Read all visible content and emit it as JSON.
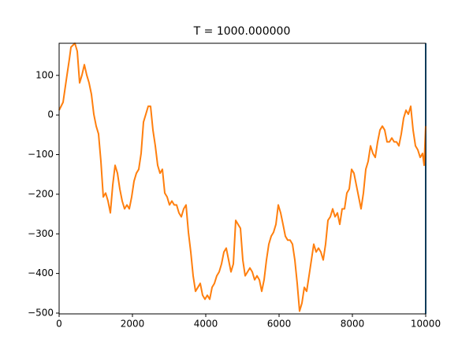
{
  "chart_data": {
    "type": "line",
    "title": "T = 1000.000000",
    "x": [
      0,
      108,
      215,
      280,
      323,
      387,
      430,
      495,
      560,
      624,
      688,
      753,
      817,
      882,
      946,
      1011,
      1075,
      1140,
      1204,
      1269,
      1333,
      1398,
      1462,
      1527,
      1591,
      1656,
      1720,
      1785,
      1849,
      1914,
      1978,
      2043,
      2108,
      2172,
      2237,
      2301,
      2366,
      2430,
      2495,
      2559,
      2624,
      2688,
      2753,
      2817,
      2882,
      2946,
      3011,
      3075,
      3140,
      3204,
      3269,
      3333,
      3398,
      3462,
      3527,
      3591,
      3656,
      3720,
      3785,
      3849,
      3914,
      3978,
      4043,
      4108,
      4172,
      4237,
      4301,
      4366,
      4430,
      4495,
      4559,
      4624,
      4688,
      4753,
      4817,
      4882,
      4946,
      5011,
      5075,
      5140,
      5204,
      5269,
      5333,
      5398,
      5462,
      5527,
      5591,
      5656,
      5720,
      5785,
      5849,
      5914,
      5978,
      6043,
      6108,
      6172,
      6237,
      6301,
      6366,
      6430,
      6495,
      6559,
      6624,
      6688,
      6753,
      6817,
      6882,
      6946,
      7011,
      7075,
      7140,
      7204,
      7269,
      7333,
      7398,
      7462,
      7527,
      7591,
      7656,
      7720,
      7785,
      7849,
      7914,
      7978,
      8043,
      8108,
      8172,
      8237,
      8301,
      8366,
      8430,
      8495,
      8559,
      8624,
      8688,
      8753,
      8817,
      8882,
      8946,
      9011,
      9075,
      9140,
      9204,
      9269,
      9333,
      9398,
      9462,
      9527,
      9591,
      9656,
      9720,
      9785,
      9849,
      9914,
      9957,
      10000
    ],
    "series": [
      {
        "color": "#ff7f0e",
        "values": [
          12,
          32,
          101,
          141,
          171,
          177,
          181,
          161,
          81,
          101,
          127,
          101,
          81,
          52,
          2,
          -28,
          -48,
          -117,
          -207,
          -197,
          -217,
          -247,
          -177,
          -127,
          -147,
          -187,
          -217,
          -237,
          -227,
          -237,
          -207,
          -167,
          -147,
          -137,
          -97,
          -18,
          2,
          22,
          22,
          -38,
          -78,
          -127,
          -147,
          -137,
          -197,
          -207,
          -227,
          -217,
          -227,
          -227,
          -247,
          -257,
          -237,
          -227,
          -296,
          -346,
          -406,
          -445,
          -435,
          -425,
          -455,
          -465,
          -455,
          -465,
          -435,
          -425,
          -406,
          -396,
          -376,
          -346,
          -336,
          -366,
          -396,
          -376,
          -266,
          -276,
          -286,
          -366,
          -406,
          -396,
          -386,
          -396,
          -416,
          -406,
          -416,
          -445,
          -416,
          -366,
          -326,
          -306,
          -296,
          -276,
          -227,
          -247,
          -276,
          -306,
          -316,
          -316,
          -326,
          -366,
          -425,
          -495,
          -475,
          -435,
          -445,
          -406,
          -366,
          -326,
          -346,
          -336,
          -346,
          -366,
          -326,
          -266,
          -257,
          -237,
          -257,
          -247,
          -276,
          -237,
          -237,
          -197,
          -187,
          -137,
          -147,
          -177,
          -207,
          -237,
          -197,
          -137,
          -117,
          -78,
          -97,
          -107,
          -68,
          -38,
          -28,
          -38,
          -68,
          -68,
          -58,
          -68,
          -68,
          -78,
          -48,
          -8,
          12,
          2,
          22,
          -38,
          -78,
          -88,
          -107,
          -97,
          -127,
          -28
        ]
      }
    ],
    "vlines": [
      {
        "x": 10000,
        "color": "#1f77b4"
      }
    ],
    "xlim": [
      0,
      10000
    ],
    "ylim": [
      -502,
      181
    ],
    "xticks": [
      0,
      2000,
      4000,
      6000,
      8000,
      10000
    ],
    "yticks": [
      -500,
      -400,
      -300,
      -200,
      -100,
      0,
      100
    ]
  }
}
